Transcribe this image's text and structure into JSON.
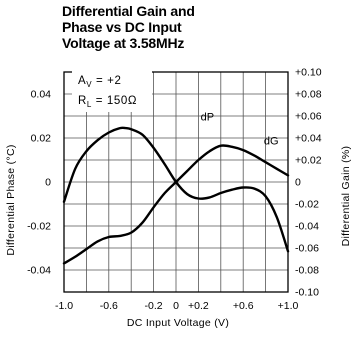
{
  "title_lines": [
    "Differential Gain and",
    "Phase vs DC Input",
    "Voltage at 3.58MHz"
  ],
  "annotations": {
    "av": "A",
    "av_sub": "V",
    "av_value": " = +2",
    "rl": "R",
    "rl_sub": "L",
    "rl_value": " = 150Ω"
  },
  "chart_data": {
    "type": "line",
    "title": "Differential Gain and Phase vs DC Input Voltage at 3.58MHz",
    "xlabel": "DC Input Voltage (V)",
    "ylabel_left": "Differential Phase (°C)",
    "ylabel_right": "Differential Gain (%)",
    "xlim": [
      -1.0,
      1.0
    ],
    "ylim_left": [
      -0.05,
      0.05
    ],
    "ylim_right": [
      -0.1,
      0.1
    ],
    "x_tick_labels": [
      {
        "v": -1.0,
        "t": "-1.0"
      },
      {
        "v": -0.6,
        "t": "-0.6"
      },
      {
        "v": -0.2,
        "t": "-0.2"
      },
      {
        "v": 0.0,
        "t": "0"
      },
      {
        "v": 0.2,
        "t": "+0.2"
      },
      {
        "v": 0.6,
        "t": "+0.6"
      },
      {
        "v": 1.0,
        "t": "+1.0"
      }
    ],
    "y_left_tick_labels": [
      {
        "v": 0.04,
        "t": "0.04"
      },
      {
        "v": 0.02,
        "t": "0.02"
      },
      {
        "v": 0.0,
        "t": "0"
      },
      {
        "v": -0.02,
        "t": "-0.02"
      },
      {
        "v": -0.04,
        "t": "-0.04"
      }
    ],
    "y_right_tick_labels": [
      {
        "v": 0.1,
        "t": "+0.10"
      },
      {
        "v": 0.08,
        "t": "+0.08"
      },
      {
        "v": 0.06,
        "t": "+0.06"
      },
      {
        "v": 0.04,
        "t": "+0.04"
      },
      {
        "v": 0.02,
        "t": "+0.02"
      },
      {
        "v": 0.0,
        "t": "0"
      },
      {
        "v": -0.02,
        "t": "-0.02"
      },
      {
        "v": -0.04,
        "t": "-0.04"
      },
      {
        "v": -0.06,
        "t": "-0.06"
      },
      {
        "v": -0.08,
        "t": "-0.08"
      },
      {
        "v": -0.1,
        "t": "-0.10"
      }
    ],
    "grid": true,
    "series": [
      {
        "name": "dP",
        "axis": "left",
        "x": [
          -1.0,
          -0.9,
          -0.8,
          -0.7,
          -0.6,
          -0.5,
          -0.45,
          -0.4,
          -0.3,
          -0.2,
          -0.1,
          0.0,
          0.1,
          0.2,
          0.3,
          0.4,
          0.5,
          0.6,
          0.7,
          0.8,
          0.9,
          1.0
        ],
        "y": [
          -0.009,
          0.006,
          0.014,
          0.019,
          0.0225,
          0.0245,
          0.0245,
          0.024,
          0.0215,
          0.0155,
          0.008,
          0.0,
          -0.0055,
          -0.0075,
          -0.007,
          -0.005,
          -0.0035,
          -0.0025,
          -0.003,
          -0.0065,
          -0.016,
          -0.0315
        ]
      },
      {
        "name": "dG",
        "axis": "right",
        "x": [
          -1.0,
          -0.9,
          -0.8,
          -0.7,
          -0.6,
          -0.5,
          -0.4,
          -0.3,
          -0.2,
          -0.1,
          0.0,
          0.1,
          0.2,
          0.3,
          0.4,
          0.5,
          0.6,
          0.7,
          0.8,
          0.9,
          1.0
        ],
        "y": [
          -0.074,
          -0.068,
          -0.061,
          -0.054,
          -0.05,
          -0.049,
          -0.046,
          -0.037,
          -0.023,
          -0.01,
          0.0,
          0.01,
          0.02,
          0.028,
          0.033,
          0.032,
          0.029,
          0.024,
          0.018,
          0.012,
          0.006
        ]
      }
    ],
    "series_labels": [
      {
        "series": "dP",
        "x": 0.28,
        "y": 0.028
      },
      {
        "series": "dG",
        "x": 0.85,
        "y": 0.034
      }
    ]
  }
}
